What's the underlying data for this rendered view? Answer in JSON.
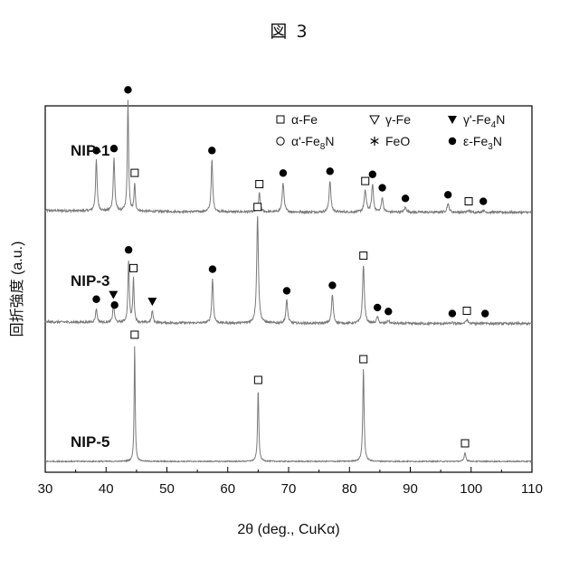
{
  "figure_title": "図 3",
  "chart_data": {
    "type": "line",
    "xlabel": "2θ (deg., CuKα)",
    "ylabel": "回折強度 (a.u.)",
    "xlim": [
      30,
      110
    ],
    "xticks": [
      30,
      40,
      50,
      60,
      70,
      80,
      90,
      100,
      110
    ],
    "y_ticks_shown": false,
    "legend": {
      "placement": "top-right",
      "entries": [
        {
          "marker": "open-square",
          "text": "α-Fe"
        },
        {
          "marker": "open-triangle-down",
          "text": "γ-Fe"
        },
        {
          "marker": "filled-triangle-down",
          "text": "γ'-Fe",
          "sub": "4",
          "tail": "N"
        },
        {
          "marker": "open-circle",
          "text": "α'-Fe",
          "sub": "8",
          "tail": "N"
        },
        {
          "marker": "asterisk",
          "text": "FeO"
        },
        {
          "marker": "filled-circle",
          "text": "ε-Fe",
          "sub": "3",
          "tail": "N"
        }
      ]
    },
    "series": [
      {
        "name": "NIP-1",
        "baseline": 0.08,
        "noise": 0.012,
        "peaks": [
          {
            "x": 38.4,
            "h": 0.55,
            "w": 0.15,
            "marker": "filled-circle"
          },
          {
            "x": 41.3,
            "h": 0.57,
            "w": 0.15,
            "marker": "filled-circle"
          },
          {
            "x": 43.6,
            "h": 1.2,
            "w": 0.12,
            "marker": "filled-circle"
          },
          {
            "x": 44.7,
            "h": 0.3,
            "w": 0.12,
            "marker": "open-square"
          },
          {
            "x": 57.4,
            "h": 0.56,
            "w": 0.15,
            "marker": "filled-circle"
          },
          {
            "x": 65.2,
            "h": 0.2,
            "w": 0.17,
            "marker": "open-square"
          },
          {
            "x": 69.1,
            "h": 0.32,
            "w": 0.17,
            "marker": "filled-circle"
          },
          {
            "x": 76.8,
            "h": 0.34,
            "w": 0.17,
            "marker": "filled-circle"
          },
          {
            "x": 82.6,
            "h": 0.23,
            "w": 0.2,
            "marker": "open-square"
          },
          {
            "x": 83.8,
            "h": 0.3,
            "w": 0.17,
            "marker": "filled-circle"
          },
          {
            "x": 85.4,
            "h": 0.16,
            "w": 0.17,
            "marker": "filled-circle"
          },
          {
            "x": 89.2,
            "h": 0.05,
            "w": 0.2,
            "marker": "filled-circle"
          },
          {
            "x": 96.2,
            "h": 0.09,
            "w": 0.2,
            "marker": "filled-circle"
          },
          {
            "x": 99.6,
            "h": 0.02,
            "w": 0.2,
            "marker": "open-square"
          },
          {
            "x": 102.0,
            "h": 0.02,
            "w": 0.2,
            "marker": "filled-circle"
          }
        ]
      },
      {
        "name": "NIP-3",
        "baseline": 0.07,
        "noise": 0.012,
        "peaks": [
          {
            "x": 38.4,
            "h": 0.15,
            "w": 0.15,
            "marker": "filled-circle"
          },
          {
            "x": 41.2,
            "h": 0.19,
            "w": 0.13,
            "marker": "filled-triangle-down"
          },
          {
            "x": 41.4,
            "h": 0.03,
            "w": 0.13,
            "marker": "filled-circle"
          },
          {
            "x": 43.7,
            "h": 0.67,
            "w": 0.13,
            "marker": "filled-circle"
          },
          {
            "x": 44.5,
            "h": 0.47,
            "w": 0.13,
            "marker": "open-square"
          },
          {
            "x": 47.6,
            "h": 0.13,
            "w": 0.15,
            "marker": "filled-triangle-down"
          },
          {
            "x": 57.5,
            "h": 0.48,
            "w": 0.15,
            "marker": "filled-circle"
          },
          {
            "x": 64.9,
            "h": 1.15,
            "w": 0.17,
            "marker": "open-square"
          },
          {
            "x": 69.7,
            "h": 0.25,
            "w": 0.17,
            "marker": "filled-circle"
          },
          {
            "x": 77.2,
            "h": 0.31,
            "w": 0.17,
            "marker": "filled-circle"
          },
          {
            "x": 82.3,
            "h": 0.63,
            "w": 0.17,
            "marker": "open-square"
          },
          {
            "x": 84.6,
            "h": 0.07,
            "w": 0.17,
            "marker": "filled-circle"
          },
          {
            "x": 86.4,
            "h": 0.03,
            "w": 0.2,
            "marker": "filled-circle"
          },
          {
            "x": 96.9,
            "h": 0.01,
            "w": 0.2,
            "marker": "filled-circle"
          },
          {
            "x": 99.3,
            "h": 0.04,
            "w": 0.2,
            "marker": "open-square"
          },
          {
            "x": 102.3,
            "h": 0.01,
            "w": 0.2,
            "marker": "filled-circle"
          }
        ]
      },
      {
        "name": "NIP-5",
        "baseline": 0.02,
        "noise": 0.006,
        "peaks": [
          {
            "x": 44.7,
            "h": 1.3,
            "w": 0.1,
            "marker": "open-square"
          },
          {
            "x": 65.0,
            "h": 0.8,
            "w": 0.12,
            "marker": "open-square"
          },
          {
            "x": 82.3,
            "h": 1.03,
            "w": 0.13,
            "marker": "open-square"
          },
          {
            "x": 99.0,
            "h": 0.1,
            "w": 0.15,
            "marker": "open-square"
          }
        ]
      }
    ]
  }
}
